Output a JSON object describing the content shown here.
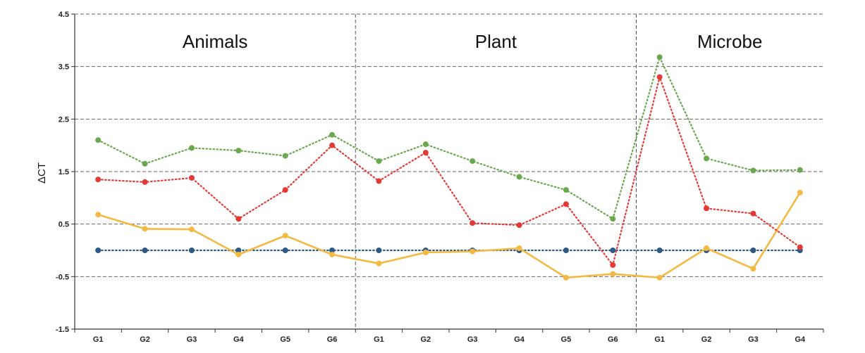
{
  "chart_data": {
    "type": "line",
    "ylabel": "ΔCT",
    "ylim": [
      -1.5,
      4.5
    ],
    "yticks": [
      "4.5",
      "3.5",
      "2.5",
      "1.5",
      "0.5",
      "-0.5",
      "-1.5"
    ],
    "categories": [
      "G1",
      "G2",
      "G3",
      "G4",
      "G5",
      "G6",
      "G1",
      "G2",
      "G3",
      "G4",
      "G5",
      "G6",
      "G1",
      "G2",
      "G3",
      "G4"
    ],
    "regions": [
      {
        "label": "Animals",
        "count": 6
      },
      {
        "label": "Plant",
        "count": 6
      },
      {
        "label": "Microbe",
        "count": 4
      }
    ],
    "grid": true,
    "series": [
      {
        "color": "#6aa84f",
        "style": "dotted",
        "values": [
          2.1,
          1.65,
          1.95,
          1.9,
          1.8,
          2.2,
          1.7,
          2.02,
          1.7,
          1.4,
          1.15,
          0.6,
          3.68,
          1.75,
          1.52,
          1.53
        ]
      },
      {
        "color": "#e53935",
        "style": "dotted",
        "values": [
          1.35,
          1.3,
          1.38,
          0.6,
          1.15,
          2.0,
          1.32,
          1.86,
          0.52,
          0.48,
          0.88,
          -0.28,
          3.3,
          0.8,
          0.7,
          0.06
        ]
      },
      {
        "color": "#f4b942",
        "style": "solid",
        "values": [
          0.68,
          0.41,
          0.4,
          -0.08,
          0.28,
          -0.08,
          -0.25,
          -0.04,
          -0.02,
          0.04,
          -0.52,
          -0.45,
          -0.52,
          0.04,
          -0.35,
          1.1
        ]
      },
      {
        "color": "#2c5a85",
        "style": "dotted",
        "values": [
          0.0,
          0.0,
          0.0,
          0.0,
          0.0,
          0.0,
          0.0,
          0.0,
          0.0,
          0.0,
          0.0,
          0.0,
          0.0,
          0.0,
          0.0,
          0.0
        ]
      }
    ]
  }
}
